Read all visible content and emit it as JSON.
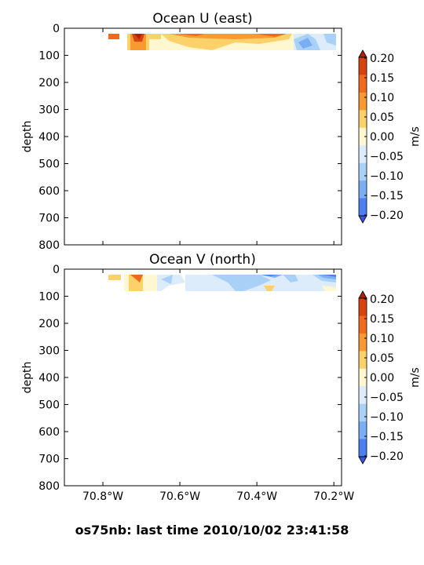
{
  "chart_data": [
    {
      "type": "heatmap",
      "title": "Ocean U (east)",
      "xlabel": "",
      "ylabel": "depth",
      "xlim": [
        -70.9,
        -70.18
      ],
      "ylim": [
        800,
        0
      ],
      "yticks": [
        "0",
        "100",
        "200",
        "300",
        "400",
        "500",
        "600",
        "700",
        "800"
      ],
      "xticks": [],
      "colorbar": {
        "label": "m/s",
        "ticks": [
          "0.20",
          "0.15",
          "0.10",
          "0.05",
          "0.00",
          "−0.05",
          "−0.10",
          "−0.15",
          "−0.20"
        ]
      }
    },
    {
      "type": "heatmap",
      "title": "Ocean V (north)",
      "xlabel": "",
      "ylabel": "depth",
      "xlim": [
        -70.9,
        -70.18
      ],
      "ylim": [
        800,
        0
      ],
      "yticks": [
        "0",
        "100",
        "200",
        "300",
        "400",
        "500",
        "600",
        "700",
        "800"
      ],
      "xticks": [
        "70.8°W",
        "70.6°W",
        "70.4°W",
        "70.2°W"
      ],
      "colorbar": {
        "label": "m/s",
        "ticks": [
          "0.20",
          "0.15",
          "0.10",
          "0.05",
          "0.00",
          "−0.05",
          "−0.10",
          "−0.15",
          "−0.20"
        ]
      }
    }
  ],
  "colors": {
    "levels": [
      "#d8420f",
      "#f06a1e",
      "#f89a2f",
      "#fcd16a",
      "#fff7cf",
      "#dcecfb",
      "#a9d0f7",
      "#79aef2",
      "#4d7ff0"
    ],
    "over": "#b41e0a",
    "under": "#3a54e8"
  },
  "footer": "os75nb: last time 2010/10/02 23:41:58"
}
